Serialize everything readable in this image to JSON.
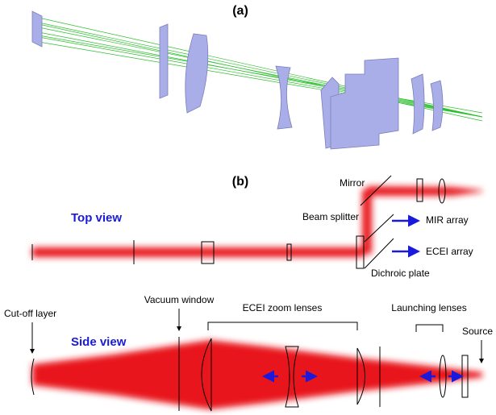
{
  "panel_a": {
    "label": "(a)"
  },
  "panel_b": {
    "label": "(b)"
  },
  "top_view": {
    "title": "Top view",
    "mirror": "Mirror",
    "beam_splitter": "Beam splitter",
    "mir_array": "MIR array",
    "ecei_array": "ECEI array",
    "dichroic_plate": "Dichroic plate"
  },
  "side_view": {
    "title": "Side view",
    "cutoff_layer": "Cut-off layer",
    "vacuum_window": "Vacuum window",
    "zoom_lenses": "ECEI zoom lenses",
    "launching_lenses": "Launching lenses",
    "source": "Source"
  }
}
